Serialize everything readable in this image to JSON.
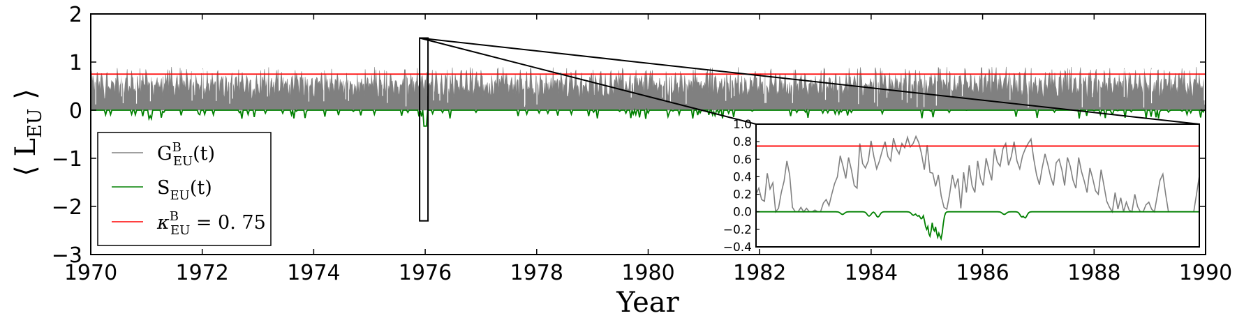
{
  "chart_data": {
    "type": "line",
    "xlabel": "Year",
    "ylabel": "⟨ L_EU ⟩",
    "xlim": [
      1970,
      1990
    ],
    "ylim": [
      -3,
      2
    ],
    "xticks": [
      "1970",
      "1972",
      "1974",
      "1976",
      "1978",
      "1980",
      "1982",
      "1984",
      "1986",
      "1988",
      "1990"
    ],
    "yticks": [
      "2",
      "1",
      "0",
      "−1",
      "−2",
      "−3"
    ],
    "grid": false,
    "legend_position": "lower-left",
    "legend": [
      {
        "label_main": "G",
        "label_sup": "B",
        "label_sub": "EU",
        "label_tail": "(t)",
        "color": "#808080"
      },
      {
        "label_main": "S",
        "label_sup": "",
        "label_sub": "EU",
        "label_tail": "(t)",
        "color": "#008000"
      },
      {
        "label_main": "κ",
        "label_sup": "B",
        "label_sub": "EU",
        "label_tail": " = 0. 75",
        "color": "#ff0000"
      }
    ],
    "series": [
      {
        "name": "G^B_EU(t)",
        "color": "#808080",
        "style": "dense-fill",
        "typical_range": [
          0.2,
          0.85
        ],
        "peak_max": 0.9
      },
      {
        "name": "S_EU(t)",
        "color": "#008000",
        "style": "line",
        "baseline": 0.0,
        "min_near_1976": -0.33,
        "typical_min": -0.18
      },
      {
        "name": "κ^B_EU = 0.75",
        "color": "#ff0000",
        "style": "hline",
        "value": 0.75
      }
    ],
    "zoom_window": {
      "x_range": [
        1975.9,
        1976.05
      ],
      "y_range": [
        -2.3,
        1.5
      ]
    },
    "inset": {
      "ylim": [
        -0.4,
        1.0
      ],
      "yticks": [
        "1.0",
        "0.8",
        "0.6",
        "0.4",
        "0.2",
        "0.0",
        "−0.2",
        "−0.4"
      ],
      "threshold": 0.75,
      "G_values": [
        0.2,
        0.27,
        0.14,
        0.12,
        0.44,
        0.26,
        0.33,
        0.0,
        0.04,
        0.22,
        0.35,
        0.58,
        0.42,
        0.05,
        0.0,
        0.0,
        0.05,
        0.0,
        0.04,
        0.0,
        0.0,
        0.02,
        0.0,
        0.0,
        0.1,
        0.14,
        0.07,
        0.2,
        0.32,
        0.4,
        0.64,
        0.52,
        0.38,
        0.62,
        0.48,
        0.3,
        0.27,
        0.78,
        0.55,
        0.5,
        0.58,
        0.81,
        0.63,
        0.49,
        0.58,
        0.7,
        0.8,
        0.63,
        0.58,
        0.84,
        0.72,
        0.66,
        0.78,
        0.73,
        0.85,
        0.74,
        0.78,
        0.86,
        0.79,
        0.66,
        0.48,
        0.76,
        0.45,
        0.44,
        0.29,
        0.42,
        0.18,
        0.05,
        0.03,
        0.2,
        0.42,
        0.28,
        0.38,
        0.04,
        0.45,
        0.22,
        0.53,
        0.3,
        0.22,
        0.58,
        0.38,
        0.3,
        0.61,
        0.48,
        0.36,
        0.72,
        0.57,
        0.52,
        0.72,
        0.78,
        0.53,
        0.63,
        0.8,
        0.58,
        0.49,
        0.64,
        0.72,
        0.78,
        0.83,
        0.6,
        0.42,
        0.31,
        0.5,
        0.66,
        0.54,
        0.4,
        0.3,
        0.56,
        0.6,
        0.48,
        0.3,
        0.62,
        0.52,
        0.36,
        0.27,
        0.62,
        0.46,
        0.35,
        0.22,
        0.5,
        0.38,
        0.24,
        0.2,
        0.48,
        0.3,
        0.12,
        0.05,
        0.0,
        0.22,
        0.03,
        0.16,
        0.0,
        0.11,
        0.02,
        0.0,
        0.2,
        0.06,
        0.0,
        0.0,
        0.08,
        0.11,
        0.03,
        0.0,
        0.18,
        0.36,
        0.43,
        0.2,
        0.0,
        0.0,
        0.0,
        0.0,
        0.0,
        0.0,
        0.0,
        0.0,
        0.0,
        0.0,
        0.2,
        0.41
      ],
      "S_dips": [
        {
          "at": 0.195,
          "depth": -0.03
        },
        {
          "at": 0.255,
          "depth": -0.05
        },
        {
          "at": 0.275,
          "depth": -0.06
        },
        {
          "at": 0.355,
          "depth": -0.04
        },
        {
          "at": 0.365,
          "depth": -0.05
        },
        {
          "at": 0.373,
          "depth": -0.08
        },
        {
          "at": 0.385,
          "depth": -0.2
        },
        {
          "at": 0.392,
          "depth": -0.28
        },
        {
          "at": 0.402,
          "depth": -0.22
        },
        {
          "at": 0.41,
          "depth": -0.29
        },
        {
          "at": 0.417,
          "depth": -0.31
        },
        {
          "at": 0.56,
          "depth": -0.03
        },
        {
          "at": 0.6,
          "depth": -0.06
        },
        {
          "at": 0.607,
          "depth": -0.07
        }
      ]
    }
  }
}
